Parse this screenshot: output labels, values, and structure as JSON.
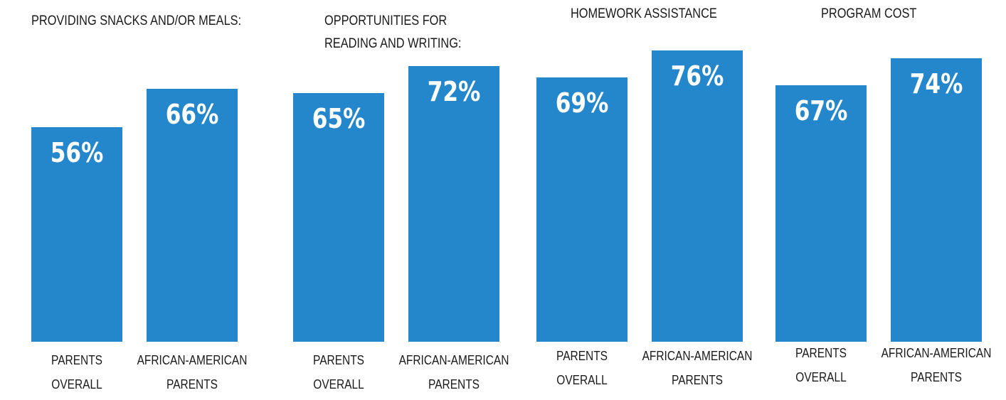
{
  "chart_data": {
    "type": "bar",
    "ylim": [
      0,
      100
    ],
    "groups": [
      {
        "title": "PROVIDING SNACKS AND/OR MEALS:",
        "bars": [
          {
            "label": "PARENTS OVERALL",
            "label_lines": [
              "PARENTS",
              "OVERALL"
            ],
            "value": 56,
            "value_label": "56%"
          },
          {
            "label": "AFRICAN-AMERICAN PARENTS",
            "label_lines": [
              "AFRICAN-AMERICAN",
              "PARENTS"
            ],
            "value": 66,
            "value_label": "66%"
          }
        ]
      },
      {
        "title": "OPPORTUNITIES FOR READING AND WRITING:",
        "title_lines": [
          "OPPORTUNITIES FOR",
          "READING AND WRITING:"
        ],
        "bars": [
          {
            "label": "PARENTS OVERALL",
            "label_lines": [
              "PARENTS",
              "OVERALL"
            ],
            "value": 65,
            "value_label": "65%"
          },
          {
            "label": "AFRICAN-AMERICAN PARENTS",
            "label_lines": [
              "AFRICAN-AMERICAN",
              "PARENTS"
            ],
            "value": 72,
            "value_label": "72%"
          }
        ]
      },
      {
        "title": "HOMEWORK ASSISTANCE",
        "bars": [
          {
            "label": "PARENTS OVERALL",
            "label_lines": [
              "PARENTS",
              "OVERALL"
            ],
            "value": 69,
            "value_label": "69%"
          },
          {
            "label": "AFRICAN-AMERICAN PARENTS",
            "label_lines": [
              "AFRICAN-AMERICAN",
              "PARENTS"
            ],
            "value": 76,
            "value_label": "76%"
          }
        ]
      },
      {
        "title": "PROGRAM COST",
        "bars": [
          {
            "label": "PARENTS OVERALL",
            "label_lines": [
              "PARENTS",
              "OVERALL"
            ],
            "value": 67,
            "value_label": "67%"
          },
          {
            "label": "AFRICAN-AMERICAN PARENTS",
            "label_lines": [
              "AFRICAN-AMERICAN",
              "PARENTS"
            ],
            "value": 74,
            "value_label": "74%"
          }
        ]
      }
    ]
  },
  "colors": {
    "bar": "#2587cb",
    "value_text": "#ffffff",
    "label_text": "#1a1a1a"
  }
}
